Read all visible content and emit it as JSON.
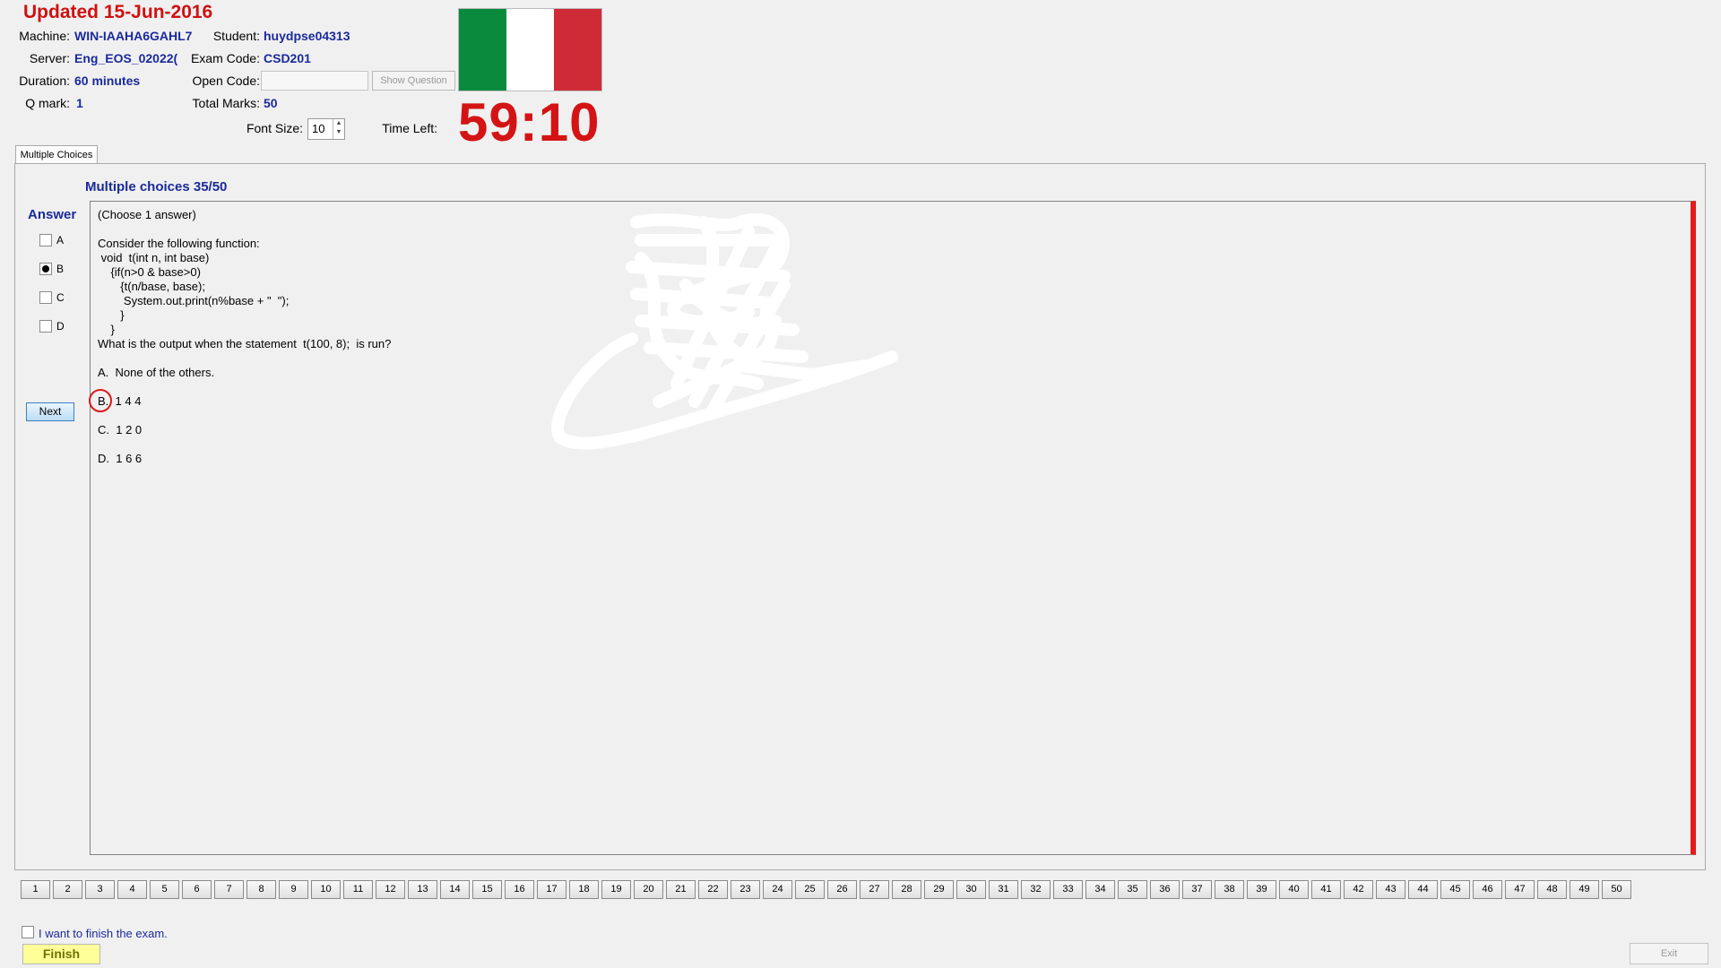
{
  "header": {
    "updated": "Updated 15-Jun-2016",
    "machine_label": "Machine:",
    "machine_value": "WIN-IAAHA6GAHL7",
    "student_label": "Student:",
    "student_value": "huydpse04313",
    "server_label": "Server:",
    "server_value": "Eng_EOS_02022(",
    "exam_code_label": "Exam Code:",
    "exam_code_value": "CSD201",
    "duration_label": "Duration:",
    "duration_value": "60 minutes",
    "open_code_label": "Open Code:",
    "open_code_value": "",
    "show_question_label": "Show Question",
    "qmark_label": "Q mark:",
    "qmark_value": "1",
    "total_marks_label": "Total Marks:",
    "total_marks_value": "50",
    "font_size_label": "Font Size:",
    "font_size_value": "10",
    "time_left_label": "Time Left:",
    "time_left_value": "59:10"
  },
  "flag_colors": [
    "#0a8a3c",
    "#ffffff",
    "#cf2b37"
  ],
  "tab_label": "Multiple Choices",
  "question_header": "Multiple choices 35/50",
  "answer_title": "Answer",
  "answer_options": [
    {
      "label": "A",
      "checked": false
    },
    {
      "label": "B",
      "checked": true
    },
    {
      "label": "C",
      "checked": false
    },
    {
      "label": "D",
      "checked": false
    }
  ],
  "next_label": "Next",
  "question": {
    "instruction": "(Choose 1 answer)",
    "lines": [
      "Consider the following function:",
      " void  t(int n, int base)",
      "    {if(n>0 & base>0)",
      "       {t(n/base, base);",
      "        System.out.print(n%base + \"  \");",
      "       }",
      "    }",
      "What is the output when the statement  t(100, 8);  is run?"
    ],
    "choices": [
      "A.  None of the others.",
      "B.  1 4 4",
      "C.  1 2 0",
      "D.  1 6 6"
    ]
  },
  "question_numbers": [
    "1",
    "2",
    "3",
    "4",
    "5",
    "6",
    "7",
    "8",
    "9",
    "10",
    "11",
    "12",
    "13",
    "14",
    "15",
    "16",
    "17",
    "18",
    "19",
    "20",
    "21",
    "22",
    "23",
    "24",
    "25",
    "26",
    "27",
    "28",
    "29",
    "30",
    "31",
    "32",
    "33",
    "34",
    "35",
    "36",
    "37",
    "38",
    "39",
    "40",
    "41",
    "42",
    "43",
    "44",
    "45",
    "46",
    "47",
    "48",
    "49",
    "50"
  ],
  "finish_checkbox_label": "I want to finish the exam.",
  "finish_label": "Finish",
  "exit_label": "Exit"
}
